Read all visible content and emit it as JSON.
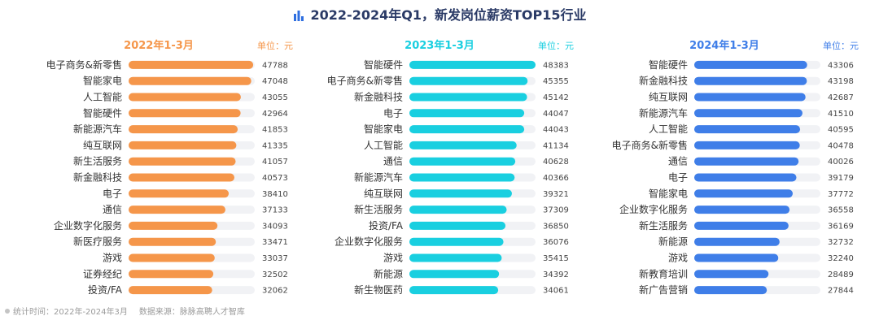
{
  "title": "2022-2024年Q1，新发岗位薪资TOP15行业",
  "footer": {
    "stat_time": "统计时间：2022年-2024年3月",
    "source": "数据来源：脉脉高聘人才智库"
  },
  "colors": {
    "title": "#2a3a66",
    "track": "#f1f2f5",
    "footer": "#9a9a9a"
  },
  "chart_data": [
    {
      "type": "bar",
      "orientation": "horizontal",
      "title": "2022年1-3月",
      "unit_label": "单位：元",
      "color": "#f5964a",
      "categories": [
        "电子商务&新零售",
        "智能家电",
        "人工智能",
        "智能硬件",
        "新能源汽车",
        "纯互联网",
        "新生活服务",
        "新金融科技",
        "电子",
        "通信",
        "企业数字化服务",
        "新医疗服务",
        "游戏",
        "证券经纪",
        "投资/FA"
      ],
      "values": [
        47788,
        47048,
        43055,
        42964,
        41853,
        41335,
        41057,
        40573,
        38410,
        37133,
        34093,
        33471,
        33037,
        32502,
        32062
      ],
      "xlim": [
        0,
        48383
      ]
    },
    {
      "type": "bar",
      "orientation": "horizontal",
      "title": "2023年1-3月",
      "unit_label": "单位：元",
      "color": "#19cfe0",
      "categories": [
        "智能硬件",
        "电子商务&新零售",
        "新金融科技",
        "电子",
        "智能家电",
        "人工智能",
        "通信",
        "新能源汽车",
        "纯互联网",
        "新生活服务",
        "投资/FA",
        "企业数字化服务",
        "游戏",
        "新能源",
        "新生物医药"
      ],
      "values": [
        48383,
        45355,
        45142,
        44047,
        44043,
        41134,
        40628,
        40366,
        39321,
        37309,
        36850,
        36076,
        35415,
        34392,
        34061
      ],
      "xlim": [
        0,
        48383
      ]
    },
    {
      "type": "bar",
      "orientation": "horizontal",
      "title": "2024年1-3月",
      "unit_label": "单位：元",
      "color": "#3f7ee8",
      "categories": [
        "智能硬件",
        "新金融科技",
        "纯互联网",
        "新能源汽车",
        "人工智能",
        "电子商务&新零售",
        "通信",
        "电子",
        "智能家电",
        "企业数字化服务",
        "新生活服务",
        "新能源",
        "游戏",
        "新教育培训",
        "新广告营销"
      ],
      "values": [
        43306,
        43198,
        42687,
        41510,
        40595,
        40478,
        40026,
        39179,
        37772,
        36558,
        36169,
        32732,
        32240,
        28489,
        27844
      ],
      "xlim": [
        0,
        48383
      ]
    }
  ]
}
